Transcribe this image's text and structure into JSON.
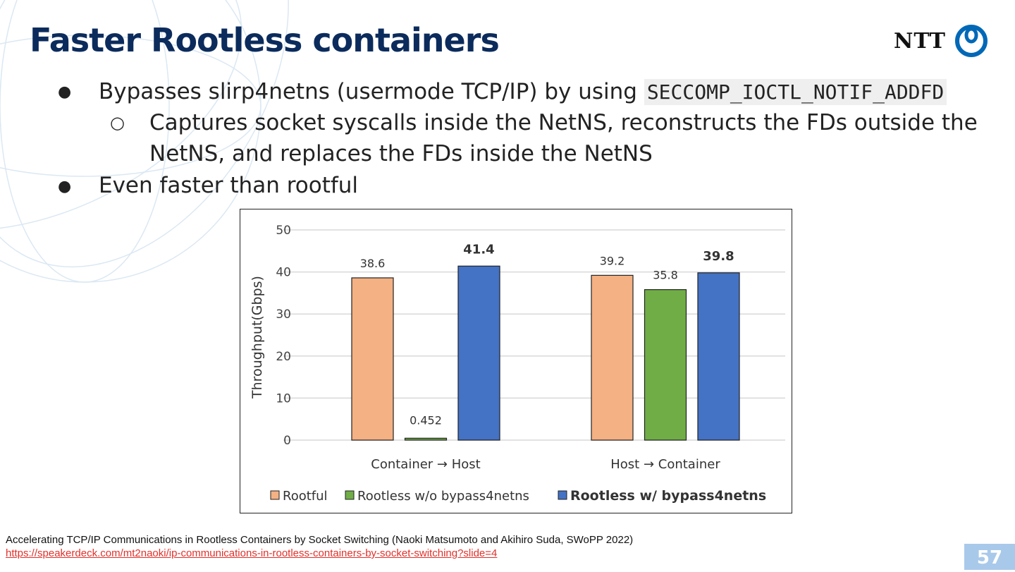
{
  "slide": {
    "title": "Faster Rootless containers",
    "logo_text": "NTT",
    "bullets": [
      {
        "text": "Bypasses slirp4netns (usermode TCP/IP) by using ",
        "code": "SECCOMP_IOCTL_NOTIF_ADDFD"
      },
      {
        "sub_lines": [
          "Captures socket syscalls inside the NetNS, reconstructs the FDs outside the",
          "NetNS, and replaces the FDs inside the NetNS"
        ]
      },
      {
        "text": "Even faster than rootful"
      }
    ],
    "bullet_glyph": "●",
    "sub_bullet_glyph": "○",
    "footer": {
      "citation": "Accelerating TCP/IP Communications in Rootless Containers by Socket Switching (Naoki Matsumoto and Akihiro Suda, SWoPP 2022)",
      "link": "https://speakerdeck.com/mt2naoki/ip-communications-in-rootless-containers-by-socket-switching?slide=4"
    },
    "page_number": "57"
  },
  "chart_data": {
    "type": "bar",
    "categories": [
      "Container → Host",
      "Host → Container"
    ],
    "series": [
      {
        "name": "Rootful",
        "values": [
          38.6,
          39.2
        ],
        "labels": [
          "38.6",
          "39.2"
        ],
        "color": "#f4b183",
        "bold": false
      },
      {
        "name": "Rootless w/o bypass4netns",
        "values": [
          0.452,
          35.8
        ],
        "labels": [
          "0.452",
          "35.8"
        ],
        "color": "#70ad47",
        "bold": false
      },
      {
        "name": "Rootless w/ bypass4netns",
        "values": [
          41.4,
          39.8
        ],
        "labels": [
          "41.4",
          "39.8"
        ],
        "color": "#4472c4",
        "bold": true
      }
    ],
    "ylabel": "Throughput(Gbps)",
    "xlabel": "",
    "ylim": [
      0,
      50
    ],
    "yticks": [
      "0",
      "10",
      "20",
      "30",
      "40",
      "50"
    ],
    "grid": true,
    "legend": "bottom"
  }
}
